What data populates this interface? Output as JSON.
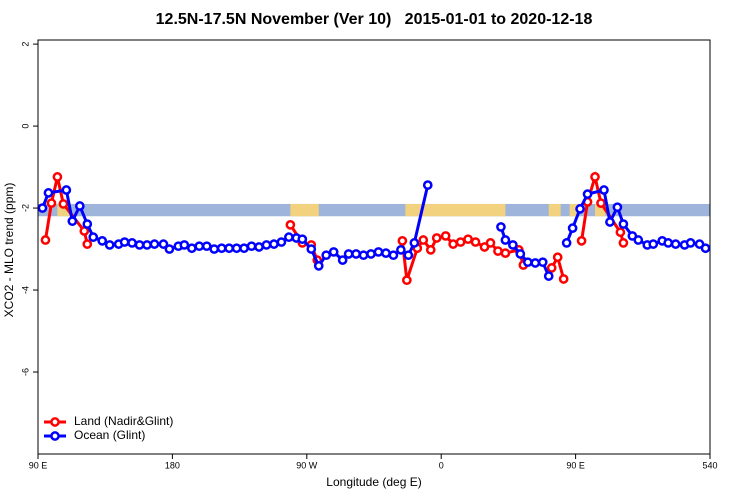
{
  "chart_data": {
    "type": "line",
    "title": "12.5N-17.5N November (Ver 10)   2015-01-01 to 2020-12-18",
    "xlabel": "Longitude (deg E)",
    "ylabel": "XCO2 - MLO trend (ppm)",
    "xlim": [
      90,
      540
    ],
    "ylim": [
      -8,
      2.1
    ],
    "xticks": [
      {
        "value": 90,
        "label": "90 E"
      },
      180,
      {
        "value": 270,
        "label": "90 W"
      },
      {
        "value": 360,
        "label": "0"
      },
      {
        "value": 450,
        "label": "90 E"
      },
      540
    ],
    "yticks": [
      2,
      0,
      -2,
      -4,
      -6
    ],
    "legend": "bottom-left",
    "band": {
      "ylim": [
        -2.2,
        -1.9
      ],
      "ocean_color": "#9fb4db",
      "land_color": "#f2d27e",
      "land_segments": [
        [
          103,
          112
        ],
        [
          259,
          278
        ],
        [
          336,
          403
        ],
        [
          432,
          440
        ],
        [
          446,
          451
        ],
        [
          463,
          470
        ]
      ]
    },
    "series": [
      {
        "name": "Land (Nadir&Glint)",
        "color": "#ff0000",
        "x": [
          95,
          99,
          103,
          107,
          121,
          123,
          null,
          259,
          267,
          273,
          277,
          null,
          334,
          337,
          344,
          348,
          353,
          357,
          363,
          368,
          373,
          378,
          383,
          389,
          393,
          398,
          403,
          412,
          415,
          null,
          434,
          438,
          442,
          null,
          454,
          458,
          463,
          467,
          480,
          482
        ],
        "values": [
          -2.78,
          -1.88,
          -1.24,
          -1.9,
          -2.56,
          -2.88,
          null,
          -2.41,
          -2.85,
          -2.9,
          -3.27,
          null,
          -2.8,
          -3.76,
          -2.98,
          -2.78,
          -3.02,
          -2.73,
          -2.68,
          -2.88,
          -2.83,
          -2.76,
          -2.83,
          -2.95,
          -2.85,
          -3.05,
          -3.1,
          -3.02,
          -3.39,
          null,
          -3.46,
          -3.2,
          -3.73,
          null,
          -2.8,
          -1.85,
          -1.24,
          -1.88,
          -2.59,
          -2.85
        ]
      },
      {
        "name": "Ocean (Glint)",
        "color": "#0000ff",
        "x": [
          93,
          97,
          109,
          113,
          118,
          123,
          127,
          133,
          138,
          144,
          148,
          153,
          158,
          163,
          168,
          174,
          178,
          184,
          188,
          193,
          198,
          203,
          208,
          213,
          218,
          223,
          228,
          233,
          238,
          243,
          248,
          253,
          258,
          263,
          267,
          273,
          278,
          283,
          288,
          294,
          298,
          303,
          308,
          313,
          318,
          323,
          328,
          333,
          338,
          342,
          351,
          null,
          400,
          403,
          408,
          413,
          418,
          423,
          428,
          432,
          null,
          444,
          448,
          453,
          458,
          469,
          473,
          478,
          482,
          488,
          492,
          498,
          502,
          508,
          512,
          517,
          523,
          527,
          533,
          537
        ],
        "values": [
          -2.0,
          -1.63,
          -1.56,
          -2.32,
          -1.95,
          -2.39,
          -2.71,
          -2.8,
          -2.9,
          -2.88,
          -2.83,
          -2.85,
          -2.9,
          -2.9,
          -2.88,
          -2.88,
          -3.0,
          -2.93,
          -2.9,
          -2.98,
          -2.93,
          -2.93,
          -3.0,
          -2.98,
          -2.98,
          -2.98,
          -2.98,
          -2.93,
          -2.95,
          -2.9,
          -2.88,
          -2.83,
          -2.71,
          -2.73,
          -2.76,
          -3.0,
          -3.41,
          -3.15,
          -3.07,
          -3.27,
          -3.12,
          -3.12,
          -3.15,
          -3.12,
          -3.07,
          -3.1,
          -3.15,
          -3.02,
          -3.15,
          -2.85,
          -1.44,
          null,
          -2.46,
          -2.78,
          -2.9,
          -3.12,
          -3.32,
          -3.34,
          -3.32,
          -3.66,
          null,
          -2.85,
          -2.49,
          -2.02,
          -1.66,
          -1.56,
          -2.34,
          -1.98,
          -2.39,
          -2.68,
          -2.78,
          -2.9,
          -2.88,
          -2.8,
          -2.85,
          -2.88,
          -2.9,
          -2.85,
          -2.88,
          -2.98
        ]
      }
    ]
  }
}
